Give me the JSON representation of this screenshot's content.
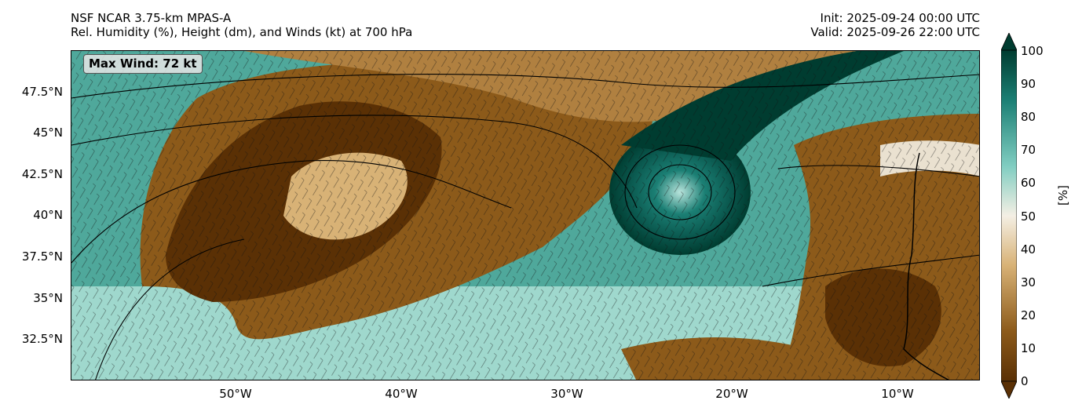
{
  "header": {
    "title_left_line1": "NSF NCAR 3.75-km MPAS-A",
    "title_left_line2": "Rel. Humidity (%), Height (dm), and Winds (kt) at 700 hPa",
    "title_right_line1": "Init: 2025-09-24 00:00 UTC",
    "title_right_line2": "Valid: 2025-09-26 22:00 UTC"
  },
  "map": {
    "max_wind_label": "Max Wind: 72 kt",
    "lat_labels": [
      "47.5°N",
      "45°N",
      "42.5°N",
      "40°N",
      "37.5°N",
      "35°N",
      "32.5°N"
    ],
    "lon_labels": [
      "50°W",
      "40°W",
      "30°W",
      "20°W",
      "10°W"
    ],
    "lon_range": [
      -60,
      -5
    ],
    "lat_range": [
      30,
      50
    ]
  },
  "colorbar": {
    "ticks": [
      "0",
      "10",
      "20",
      "30",
      "40",
      "50",
      "60",
      "70",
      "80",
      "90",
      "100"
    ],
    "unit_label": "[%]",
    "colors": {
      "dry": "#5a3005",
      "brown": "#8c5a1a",
      "tan": "#d8b276",
      "neutral": "#f4efe4",
      "teal_light": "#80cdc1",
      "teal": "#1b7f74",
      "teal_dark": "#003c30"
    }
  }
}
